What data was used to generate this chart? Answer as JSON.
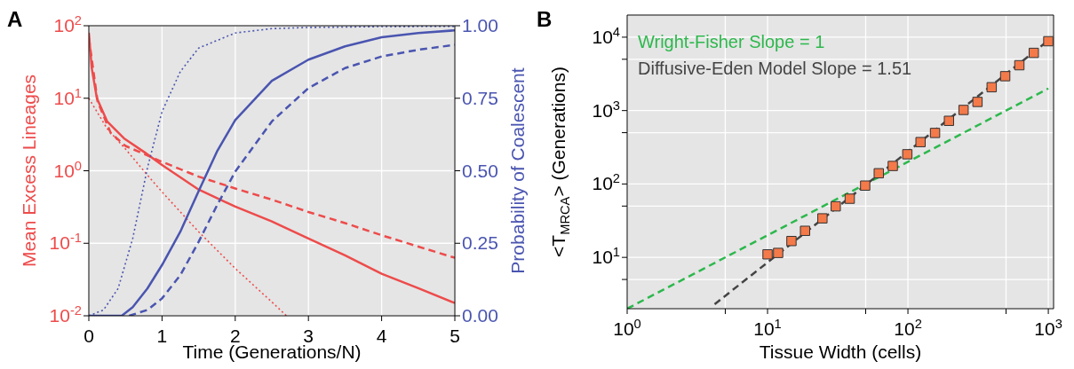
{
  "chart_data": [
    {
      "type": "line",
      "title": "A",
      "xlabel": "Time (Generations/N)",
      "ylabel": "Mean Excess Lineages",
      "y2label": "Probability of Coalescent",
      "xlim": [
        0,
        5
      ],
      "xticks": [
        0,
        1,
        2,
        3,
        4,
        5
      ],
      "ylim": [
        0.01,
        100
      ],
      "yticks": [
        {
          "value": 0.01,
          "label": "10$^{-2}$"
        },
        {
          "value": 0.1,
          "label": "10$^{-1}$"
        },
        {
          "value": 1,
          "label": "10$^{0}$"
        },
        {
          "value": 10,
          "label": "10$^{1}$"
        },
        {
          "value": 100,
          "label": "10$^{2}$"
        }
      ],
      "y2lim": [
        0,
        1
      ],
      "y2ticks": [
        {
          "value": 0,
          "label": "0.00"
        },
        {
          "value": 0.25,
          "label": "0.25"
        },
        {
          "value": 0.5,
          "label": "0.50"
        },
        {
          "value": 0.75,
          "label": "0.75"
        },
        {
          "value": 1,
          "label": "1.00"
        }
      ],
      "log": "y",
      "grid": true,
      "series": [
        {
          "color": "#ee4b4b",
          "line_style": "solid",
          "x": [
            0,
            0.04,
            0.11,
            0.25,
            0.48,
            0.76,
            1,
            1.5,
            2,
            2.5,
            3,
            3.5,
            4,
            4.5,
            5
          ],
          "values": [
            80,
            26,
            10,
            4.8,
            2.8,
            1.8,
            1.2,
            0.55,
            0.32,
            0.2,
            0.116,
            0.068,
            0.038,
            0.024,
            0.015
          ]
        },
        {
          "color": "#ee4b4b",
          "line_style": "dashed",
          "x": [
            0,
            0.12,
            0.3,
            0.5,
            1,
            1.5,
            2,
            2.5,
            3,
            3.5,
            4,
            4.5,
            5
          ],
          "values": [
            68,
            9,
            3.3,
            2.2,
            1.33,
            0.83,
            0.57,
            0.4,
            0.27,
            0.19,
            0.129,
            0.09,
            0.063
          ]
        },
        {
          "color": "#ee4b4b",
          "line_style": "dotted",
          "x": [
            0,
            0.25,
            0.5,
            0.75,
            1,
            1.5,
            2,
            2.5,
            2.7
          ],
          "values": [
            10,
            3.8,
            2.0,
            1.0,
            0.51,
            0.144,
            0.045,
            0.0155,
            0.01
          ]
        },
        {
          "color": "#4a55b0",
          "line_style": "solid",
          "axis": "y2",
          "x": [
            0,
            0.45,
            0.6,
            0.8,
            1,
            1.25,
            1.5,
            1.75,
            2,
            2.5,
            3,
            3.5,
            4,
            4.5,
            5
          ],
          "values": [
            0,
            0,
            0.03,
            0.094,
            0.175,
            0.29,
            0.43,
            0.566,
            0.675,
            0.81,
            0.883,
            0.929,
            0.96,
            0.975,
            0.984
          ]
        },
        {
          "color": "#4a55b0",
          "line_style": "dashed",
          "axis": "y2",
          "x": [
            0.55,
            0.8,
            1,
            1.25,
            1.5,
            1.75,
            2,
            2.5,
            3,
            3.5,
            4,
            4.5,
            5
          ],
          "values": [
            0,
            0.02,
            0.06,
            0.14,
            0.255,
            0.38,
            0.497,
            0.67,
            0.785,
            0.854,
            0.894,
            0.917,
            0.934
          ]
        },
        {
          "color": "#4a55b0",
          "line_style": "dotted",
          "axis": "y2",
          "x": [
            0,
            0.2,
            0.4,
            0.6,
            0.8,
            1,
            1.25,
            1.5,
            2,
            2.5,
            3,
            4,
            5
          ],
          "values": [
            0,
            0.02,
            0.094,
            0.267,
            0.509,
            0.704,
            0.842,
            0.923,
            0.975,
            0.99,
            0.994,
            0.997,
            0.998
          ]
        }
      ]
    },
    {
      "type": "scatter",
      "title": "B",
      "xlabel": "Tissue Width (cells)",
      "ylabel": "<T$_{MRCA}$> (Generations)",
      "xlim": [
        1,
        1090
      ],
      "xticks": [
        {
          "value": 1,
          "label": "10$^{0}$"
        },
        {
          "value": 5,
          "label": null
        },
        {
          "value": 10,
          "label": "10$^{1}$"
        },
        {
          "value": 50,
          "label": null
        },
        {
          "value": 100,
          "label": "10$^{2}$"
        },
        {
          "value": 500,
          "label": null
        },
        {
          "value": 1000,
          "label": "10$^{3}$"
        }
      ],
      "ylim": [
        2,
        20000
      ],
      "yticks": [
        {
          "value": 5,
          "label": null
        },
        {
          "value": 10,
          "label": "10$^{1}$"
        },
        {
          "value": 50,
          "label": null
        },
        {
          "value": 100,
          "label": "10$^{2}$"
        },
        {
          "value": 500,
          "label": null
        },
        {
          "value": 1000,
          "label": "10$^{3}$"
        },
        {
          "value": 5000,
          "label": null
        },
        {
          "value": 10000,
          "label": "10$^{4}$"
        }
      ],
      "log": "xy",
      "grid": true,
      "legend": "top left",
      "series": [
        {
          "name": "Wright-Fisher Slope = 1",
          "type": "line",
          "line_style": "dashed",
          "color": "#2db84d",
          "x": [
            1,
            1000
          ],
          "values": [
            2,
            2000
          ]
        },
        {
          "name": "Diffusive-Eden Model Slope = 1.51",
          "type": "line",
          "line_style": "dashed",
          "color": "#444444",
          "x": [
            4.2,
            1000
          ],
          "values": [
            2.3,
            9000
          ]
        },
        {
          "color": "#f47a4a",
          "marker": "square",
          "x": [
            10,
            11.9,
            14.8,
            18.5,
            24.6,
            30.6,
            38.5,
            49.6,
            62,
            78,
            99,
            123,
            156,
            196,
            249,
            313,
            395,
            493,
            622,
            788,
            1000
          ],
          "values": [
            11,
            11.5,
            16.7,
            23,
            34,
            49.6,
            63,
            95,
            140,
            176,
            254,
            372,
            496,
            725,
            1020,
            1312,
            2080,
            2940,
            4150,
            6110,
            8810
          ]
        }
      ]
    }
  ]
}
